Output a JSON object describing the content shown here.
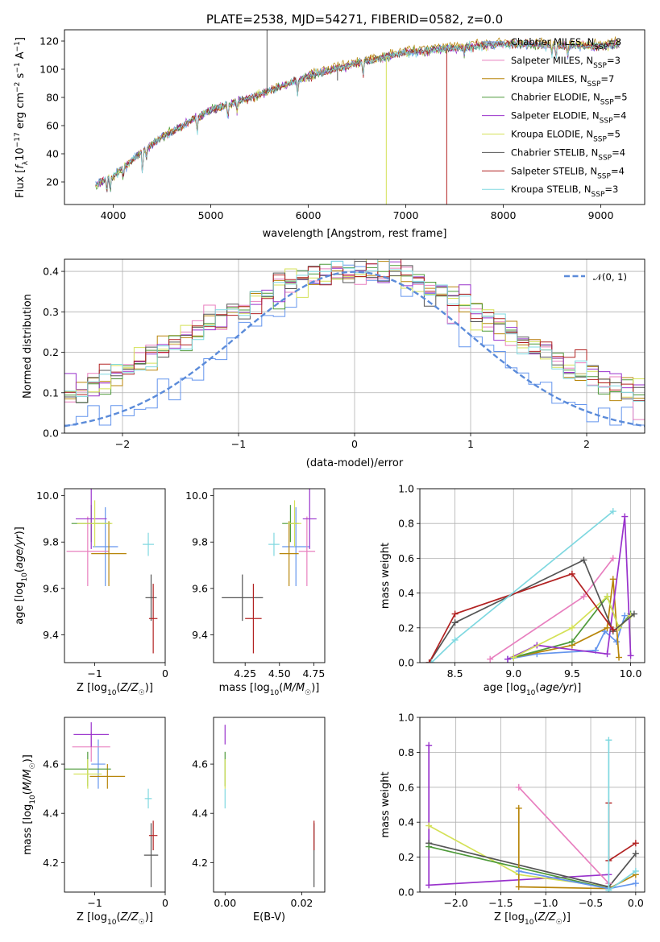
{
  "figure": {
    "title": "PLATE=2538, MJD=54271, FIBERID=0582, z=0.0"
  },
  "colors": {
    "Chabrier MILES": "#6495ed",
    "Salpeter MILES": "#e87fbf",
    "Kroupa MILES": "#b8860b",
    "Chabrier ELODIE": "#4e9a3a",
    "Salpeter ELODIE": "#9932cc",
    "Kroupa ELODIE": "#d4e157",
    "Chabrier STELIB": "#555555",
    "Salpeter STELIB": "#b22222",
    "Kroupa STELIB": "#7fd8e0",
    "normal": "#5b8bd9",
    "orange": "#ff7f0e"
  },
  "chart_data": [
    {
      "type": "line",
      "title": "PLATE=2538, MJD=54271, FIBERID=0582, z=0.0",
      "xlabel": "wavelength [Angstrom, rest frame]",
      "ylabel": "Flux [f_λ 10^-17 erg cm^-2 s^-1 A^-1]",
      "xlim": [
        3500,
        9450
      ],
      "ylim": [
        4,
        128
      ],
      "xticks": [
        4000,
        5000,
        6000,
        7000,
        8000,
        9000
      ],
      "yticks": [
        20,
        40,
        60,
        80,
        100,
        120
      ],
      "legend_position": "top-right",
      "legend": [
        "Chabrier MILES, N_SSP=8",
        "Salpeter MILES, N_SSP=3",
        "Kroupa MILES, N_SSP=7",
        "Chabrier ELODIE, N_SSP=5",
        "Salpeter ELODIE, N_SSP=4",
        "Kroupa ELODIE, N_SSP=5",
        "Chabrier STELIB, N_SSP=4",
        "Salpeter STELIB, N_SSP=4",
        "Kroupa STELIB, N_SSP=3"
      ],
      "continuum": [
        [
          3820,
          18
        ],
        [
          4000,
          24
        ],
        [
          4200,
          36
        ],
        [
          4500,
          52
        ],
        [
          5000,
          71
        ],
        [
          5500,
          82
        ],
        [
          6000,
          95
        ],
        [
          6500,
          104
        ],
        [
          7000,
          112
        ],
        [
          7500,
          115
        ],
        [
          8000,
          118
        ],
        [
          8500,
          117
        ],
        [
          9000,
          116
        ],
        [
          9200,
          118
        ]
      ],
      "absorption_features": [
        [
          3934,
          10
        ],
        [
          3969,
          10
        ],
        [
          4102,
          8
        ],
        [
          4300,
          18
        ],
        [
          4340,
          8
        ],
        [
          4861,
          12
        ],
        [
          5175,
          12
        ],
        [
          5270,
          8
        ],
        [
          5890,
          10
        ],
        [
          6563,
          12
        ],
        [
          7600,
          6
        ],
        [
          8498,
          8
        ],
        [
          8542,
          10
        ],
        [
          8662,
          8
        ]
      ],
      "spikes": [
        [
          5577,
          128
        ],
        [
          6300,
          92
        ],
        [
          6800,
          4
        ],
        [
          7420,
          4
        ]
      ]
    },
    {
      "type": "line",
      "xlabel": "(data-model)/error",
      "ylabel": "Normed distribution",
      "xlim": [
        -2.5,
        2.5
      ],
      "ylim": [
        0,
        0.43
      ],
      "xticks": [
        -2,
        -1,
        0,
        1,
        2
      ],
      "yticks": [
        0.0,
        0.1,
        0.2,
        0.3,
        0.4
      ],
      "grid": true,
      "legend_position": "top-right",
      "legend": [
        "𝒩(0, 1)"
      ],
      "reference_curve": "standard normal, mean 0, sigma 1",
      "histogram_bin_width": 0.1
    },
    {
      "type": "scatter",
      "xlabel": "Z [log10(Z/Z☉)]",
      "ylabel": "age  [log10(age/yr)]",
      "xlim": [
        -1.43,
        0.0
      ],
      "ylim": [
        9.28,
        10.03
      ],
      "xticks": [
        -1,
        0
      ],
      "yticks": [
        9.4,
        9.6,
        9.8,
        10.0
      ],
      "points": [
        {
          "model": "Chabrier MILES",
          "x": -0.85,
          "y": 9.78,
          "xerr": 0.18,
          "yerr": 0.17
        },
        {
          "model": "Salpeter MILES",
          "x": -1.1,
          "y": 9.76,
          "xerr": 0.3,
          "yerr": 0.15
        },
        {
          "model": "Kroupa MILES",
          "x": -0.8,
          "y": 9.75,
          "xerr": 0.25,
          "yerr": 0.14
        },
        {
          "model": "Chabrier ELODIE",
          "x": -1.05,
          "y": 9.88,
          "xerr": 0.28,
          "yerr": 0.08
        },
        {
          "model": "Salpeter ELODIE",
          "x": -1.05,
          "y": 9.9,
          "xerr": 0.22,
          "yerr": 0.13
        },
        {
          "model": "Kroupa ELODIE",
          "x": -1.0,
          "y": 9.88,
          "xerr": 0.25,
          "yerr": 0.1
        },
        {
          "model": "Chabrier STELIB",
          "x": -0.2,
          "y": 9.56,
          "xerr": 0.08,
          "yerr": 0.1
        },
        {
          "model": "Salpeter STELIB",
          "x": -0.17,
          "y": 9.47,
          "xerr": 0.06,
          "yerr": 0.15
        },
        {
          "model": "Kroupa STELIB",
          "x": -0.24,
          "y": 9.79,
          "xerr": 0.08,
          "yerr": 0.05
        }
      ]
    },
    {
      "type": "scatter",
      "xlabel": "mass [log10(M/M☉)]",
      "ylabel": "",
      "xlim": [
        4.02,
        4.83
      ],
      "ylim": [
        9.28,
        10.03
      ],
      "xticks": [
        4.25,
        4.5,
        4.75
      ],
      "yticks": [
        9.4,
        9.6,
        9.8,
        10.0
      ],
      "points": [
        {
          "model": "Chabrier MILES",
          "x": 4.62,
          "y": 9.78,
          "xerr": 0.1,
          "yerr": 0.17
        },
        {
          "model": "Salpeter MILES",
          "x": 4.7,
          "y": 9.76,
          "xerr": 0.06,
          "yerr": 0.15
        },
        {
          "model": "Kroupa MILES",
          "x": 4.57,
          "y": 9.75,
          "xerr": 0.07,
          "yerr": 0.14
        },
        {
          "model": "Chabrier ELODIE",
          "x": 4.58,
          "y": 9.88,
          "xerr": 0.06,
          "yerr": 0.08
        },
        {
          "model": "Salpeter ELODIE",
          "x": 4.72,
          "y": 9.9,
          "xerr": 0.05,
          "yerr": 0.13
        },
        {
          "model": "Kroupa ELODIE",
          "x": 4.61,
          "y": 9.88,
          "xerr": 0.05,
          "yerr": 0.1
        },
        {
          "model": "Chabrier STELIB",
          "x": 4.23,
          "y": 9.56,
          "xerr": 0.15,
          "yerr": 0.1
        },
        {
          "model": "Salpeter STELIB",
          "x": 4.31,
          "y": 9.47,
          "xerr": 0.06,
          "yerr": 0.15
        },
        {
          "model": "Kroupa STELIB",
          "x": 4.46,
          "y": 9.79,
          "xerr": 0.04,
          "yerr": 0.05
        }
      ]
    },
    {
      "type": "line",
      "xlabel": "age  [log10(age/yr)]",
      "ylabel": "mass weight",
      "xlim": [
        8.2,
        10.12
      ],
      "ylim": [
        0,
        1
      ],
      "xticks": [
        8.5,
        9.0,
        9.5,
        10.0
      ],
      "yticks": [
        0.0,
        0.2,
        0.4,
        0.6,
        0.8,
        1.0
      ],
      "grid": true,
      "series": [
        {
          "model": "Chabrier MILES",
          "x": [
            8.95,
            9.2,
            9.7,
            9.78,
            9.88,
            9.95
          ],
          "y": [
            0.02,
            0.05,
            0.07,
            0.18,
            0.12,
            0.27
          ]
        },
        {
          "model": "Salpeter MILES",
          "x": [
            8.8,
            9.6,
            9.85
          ],
          "y": [
            0.02,
            0.38,
            0.6
          ]
        },
        {
          "model": "Kroupa MILES",
          "x": [
            9.0,
            9.5,
            9.8,
            9.85,
            9.9
          ],
          "y": [
            0.03,
            0.1,
            0.2,
            0.48,
            0.03
          ]
        },
        {
          "model": "Chabrier ELODIE",
          "x": [
            9.0,
            9.5,
            9.8,
            9.9,
            10.0
          ],
          "y": [
            0.03,
            0.12,
            0.38,
            0.2,
            0.28
          ]
        },
        {
          "model": "Salpeter ELODIE",
          "x": [
            8.95,
            9.2,
            9.8,
            9.95,
            10.0
          ],
          "y": [
            0.02,
            0.1,
            0.05,
            0.84,
            0.04
          ]
        },
        {
          "model": "Kroupa ELODIE",
          "x": [
            9.0,
            9.5,
            9.8,
            9.9,
            10.0
          ],
          "y": [
            0.03,
            0.2,
            0.38,
            0.2,
            0.27
          ]
        },
        {
          "model": "Chabrier STELIB",
          "x": [
            8.28,
            8.5,
            9.6,
            9.85,
            10.03
          ],
          "y": [
            0.0,
            0.23,
            0.59,
            0.18,
            0.28
          ]
        },
        {
          "model": "Salpeter STELIB",
          "x": [
            8.28,
            8.5,
            9.5,
            9.85
          ],
          "y": [
            0.0,
            0.28,
            0.51,
            0.19
          ]
        },
        {
          "model": "Kroupa STELIB",
          "x": [
            8.3,
            8.5,
            9.85
          ],
          "y": [
            0.0,
            0.13,
            0.87
          ]
        }
      ]
    },
    {
      "type": "scatter",
      "xlabel": "Z [log10(Z/Z☉)]",
      "ylabel": "mass [log10(M/M☉)]",
      "xlim": [
        -1.43,
        0.0
      ],
      "ylim": [
        4.08,
        4.79
      ],
      "xticks": [
        -1,
        0
      ],
      "yticks": [
        4.2,
        4.4,
        4.6
      ],
      "points": [
        {
          "model": "Chabrier MILES",
          "x": -0.95,
          "y": 4.6,
          "xerr": 0.1,
          "yerr": 0.1
        },
        {
          "model": "Salpeter MILES",
          "x": -1.05,
          "y": 4.67,
          "xerr": 0.27,
          "yerr": 0.06
        },
        {
          "model": "Kroupa MILES",
          "x": -0.82,
          "y": 4.55,
          "xerr": 0.25,
          "yerr": 0.05
        },
        {
          "model": "Chabrier ELODIE",
          "x": -1.1,
          "y": 4.58,
          "xerr": 0.33,
          "yerr": 0.07
        },
        {
          "model": "Salpeter ELODIE",
          "x": -1.05,
          "y": 4.72,
          "xerr": 0.25,
          "yerr": 0.05
        },
        {
          "model": "Kroupa ELODIE",
          "x": -1.1,
          "y": 4.56,
          "xerr": 0.2,
          "yerr": 0.06
        },
        {
          "model": "Chabrier STELIB",
          "x": -0.2,
          "y": 4.23,
          "xerr": 0.1,
          "yerr": 0.13
        },
        {
          "model": "Salpeter STELIB",
          "x": -0.17,
          "y": 4.31,
          "xerr": 0.06,
          "yerr": 0.06
        },
        {
          "model": "Kroupa STELIB",
          "x": -0.24,
          "y": 4.46,
          "xerr": 0.05,
          "yerr": 0.04
        }
      ]
    },
    {
      "type": "scatter",
      "xlabel": "E(B-V)",
      "ylabel": "",
      "xlim": [
        -0.003,
        0.026
      ],
      "ylim": [
        4.08,
        4.79
      ],
      "xticks": [
        0.0,
        0.02
      ],
      "xtick_labels": [
        "0.00",
        "0.02"
      ],
      "yticks": [
        4.2,
        4.4,
        4.6
      ],
      "points": [
        {
          "model": "Kroupa STELIB",
          "x": 0.0,
          "y": 4.46,
          "yerr": 0.04
        },
        {
          "model": "Chabrier ELODIE",
          "x": 0.0,
          "y": 4.58,
          "yerr": 0.07
        },
        {
          "model": "Kroupa ELODIE",
          "x": 0.0,
          "y": 4.56,
          "yerr": 0.06
        },
        {
          "model": "Salpeter ELODIE",
          "x": 0.0,
          "y": 4.72,
          "yerr": 0.04
        },
        {
          "model": "Chabrier STELIB",
          "x": 0.0232,
          "y": 4.23,
          "yerr": 0.13
        },
        {
          "model": "Salpeter STELIB",
          "x": 0.0232,
          "y": 4.31,
          "yerr": 0.06
        }
      ]
    },
    {
      "type": "line",
      "xlabel": "Z [log10(Z/Z☉)]",
      "ylabel": "mass weight",
      "xlim": [
        -2.4,
        0.1
      ],
      "ylim": [
        0,
        1
      ],
      "xticks": [
        -2.0,
        -1.5,
        -1.0,
        -0.5,
        0.0
      ],
      "yticks": [
        0.0,
        0.2,
        0.4,
        0.6,
        0.8,
        1.0
      ],
      "grid": true,
      "series": [
        {
          "model": "Salpeter ELODIE",
          "x": [
            -2.3,
            -2.3,
            -0.3
          ],
          "y": [
            0.84,
            0.04,
            0.1
          ]
        },
        {
          "model": "Kroupa ELODIE",
          "x": [
            -2.3,
            -1.3,
            -0.3
          ],
          "y": [
            0.38,
            0.1,
            0.03
          ]
        },
        {
          "model": "Chabrier STELIB",
          "x": [
            -2.3,
            -0.3,
            0.0
          ],
          "y": [
            0.28,
            0.03,
            0.22
          ]
        },
        {
          "model": "Chabrier ELODIE",
          "x": [
            -2.3,
            -0.3
          ],
          "y": [
            0.26,
            0.02
          ]
        },
        {
          "model": "Salpeter MILES",
          "x": [
            -1.3,
            -0.3
          ],
          "y": [
            0.6,
            0.05
          ]
        },
        {
          "model": "Kroupa MILES",
          "x": [
            -1.3,
            -1.3,
            -0.3,
            0.0
          ],
          "y": [
            0.48,
            0.03,
            0.02,
            0.1
          ]
        },
        {
          "model": "Chabrier MILES",
          "x": [
            -1.3,
            -0.3,
            0.0
          ],
          "y": [
            0.12,
            0.02,
            0.05
          ]
        },
        {
          "model": "Salpeter STELIB",
          "x": [
            -0.3,
            -0.3,
            0.0
          ],
          "y": [
            0.51,
            0.18,
            0.28
          ]
        },
        {
          "model": "Kroupa STELIB",
          "x": [
            -0.3,
            -0.3,
            0.0
          ],
          "y": [
            0.87,
            0.01,
            0.12
          ]
        }
      ]
    }
  ]
}
